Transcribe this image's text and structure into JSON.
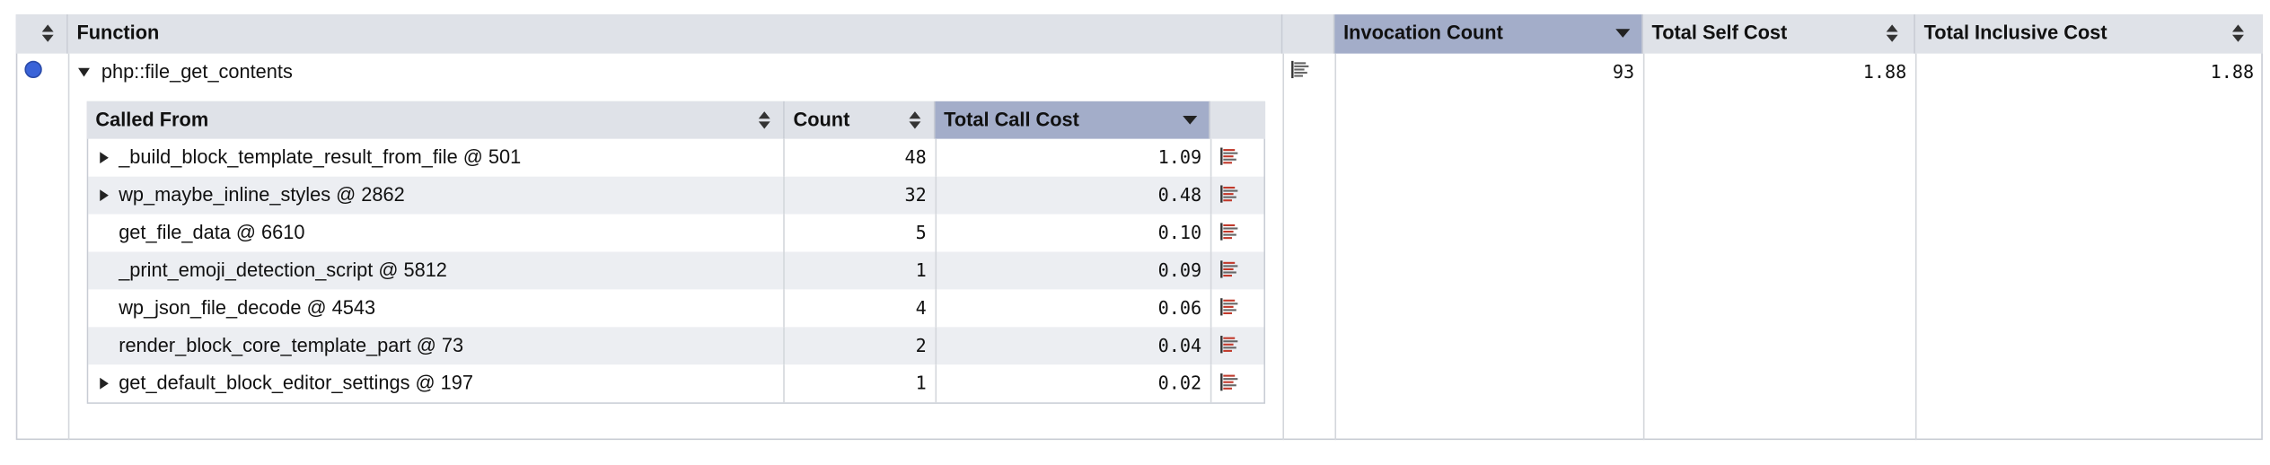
{
  "table": {
    "columns": [
      "Function",
      "Invocation Count",
      "Total Self Cost",
      "Total Inclusive Cost"
    ],
    "row": {
      "function": "php::file_get_contents",
      "invocation_count": 93,
      "total_self_cost": "1.88",
      "total_inclusive_cost": "1.88"
    },
    "called_from": {
      "columns": [
        "Called From",
        "Count",
        "Total Call Cost"
      ],
      "rows": [
        {
          "name": "_build_block_template_result_from_file @ 501",
          "count": 48,
          "cost": "1.09",
          "expandable": true
        },
        {
          "name": "wp_maybe_inline_styles @ 2862",
          "count": 32,
          "cost": "0.48",
          "expandable": true
        },
        {
          "name": "get_file_data @ 6610",
          "count": 5,
          "cost": "0.10",
          "expandable": false
        },
        {
          "name": "_print_emoji_detection_script @ 5812",
          "count": 1,
          "cost": "0.09",
          "expandable": false
        },
        {
          "name": "wp_json_file_decode @ 4543",
          "count": 4,
          "cost": "0.06",
          "expandable": false
        },
        {
          "name": "render_block_core_template_part @ 73",
          "count": 2,
          "cost": "0.04",
          "expandable": false
        },
        {
          "name": "get_default_block_editor_settings @ 197",
          "count": 1,
          "cost": "0.02",
          "expandable": true
        }
      ]
    }
  }
}
